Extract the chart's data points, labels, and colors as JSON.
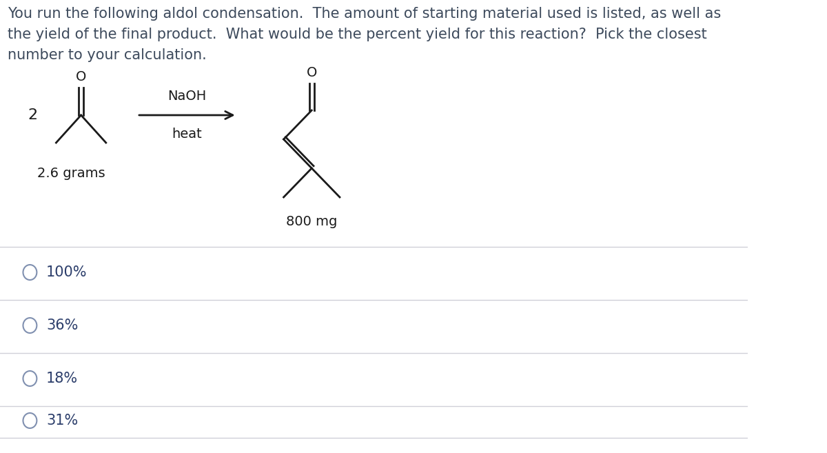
{
  "bg_color": "#ffffff",
  "text_color": "#3d4a5c",
  "mol_color": "#1a1a1a",
  "question_text_line1": "You run the following aldol condensation.  The amount of starting material used is listed, as well as",
  "question_text_line2": "the yield of the final product.  What would be the percent yield for this reaction?  Pick the closest",
  "question_text_line3": "number to your calculation.",
  "reagent_above": "NaOH",
  "reagent_below": "heat",
  "sm_label": "2.6 grams",
  "prod_label": "800 mg",
  "coefficient": "2",
  "choices": [
    "100%",
    "36%",
    "18%",
    "31%"
  ],
  "font_size_question": 15,
  "font_size_choices": 15,
  "font_size_labels": 14,
  "font_size_mol": 14,
  "divider_color": "#d0d0d8",
  "choice_text_color": "#2c3e6b"
}
